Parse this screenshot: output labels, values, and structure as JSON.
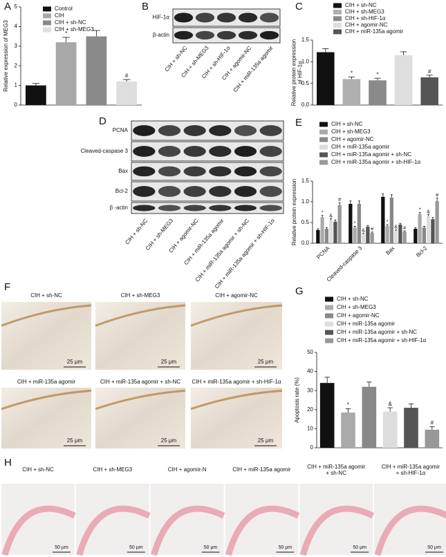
{
  "chart_data": [
    {
      "type": "bar",
      "label": "A",
      "ylabel": [
        "Relative expression of MEG3"
      ],
      "categories": [
        "Control",
        "CIH",
        "CIH + sh-NC",
        "CIH + sh-MEG3"
      ],
      "values": [
        1.0,
        3.2,
        3.5,
        1.2
      ],
      "errors": [
        0.1,
        0.25,
        0.3,
        0.1
      ],
      "colors": [
        "#111111",
        "#a8a8a8",
        "#8a8a8a",
        "#dedede"
      ],
      "annotations": [
        null,
        "*",
        null,
        "#"
      ],
      "ylim": [
        0,
        5
      ],
      "yticks": [
        0,
        1,
        2,
        3,
        4,
        5
      ]
    },
    {
      "type": "bar",
      "label": "C",
      "ylabel": [
        "Relative protein expression",
        "of HIF-1α"
      ],
      "categories": [
        "CIH + sh-NC",
        "CIH + sh-MEG3",
        "CIH + sh-HIF-1α",
        "CIH + agomir-NC",
        "CIH + miR-135a agomir"
      ],
      "values": [
        1.22,
        0.6,
        0.57,
        1.15,
        0.64
      ],
      "errors": [
        0.08,
        0.05,
        0.05,
        0.08,
        0.05
      ],
      "colors": [
        "#111111",
        "#b0b0b0",
        "#8a8a8a",
        "#dedede",
        "#555555"
      ],
      "annotations": [
        null,
        "*",
        "*",
        null,
        "#"
      ],
      "ylim": [
        0,
        1.5
      ],
      "yticks": [
        {
          "value": 0,
          "label": "0.0"
        },
        0.5,
        {
          "value": 1,
          "label": "1.0"
        },
        1.5
      ]
    },
    {
      "type": "grouped_bar",
      "label": "E",
      "ylabel": [
        "Relative protein expression"
      ],
      "categories": [
        "PCNA",
        "Cleaved-caspase 3",
        "Bax",
        "Bcl-2"
      ],
      "series": [
        {
          "name": "CIH + sh-NC",
          "color": "#111111",
          "values": [
            0.32,
            0.95,
            1.12,
            0.35
          ],
          "errors": [
            0.03,
            0.07,
            0.07,
            0.03
          ],
          "annotations": [
            null,
            null,
            null,
            null
          ]
        },
        {
          "name": "CIH + sh-MEG3",
          "color": "#aaaaaa",
          "values": [
            0.63,
            0.38,
            0.42,
            0.7
          ],
          "errors": [
            0.04,
            0.03,
            0.03,
            0.04
          ],
          "annotations": [
            "*",
            "*",
            "*",
            "*"
          ]
        },
        {
          "name": "CIH + agomir-NC",
          "color": "#888888",
          "values": [
            0.35,
            0.95,
            1.1,
            0.38
          ],
          "errors": [
            0.03,
            0.07,
            0.07,
            0.03
          ],
          "annotations": [
            null,
            null,
            null,
            null
          ]
        },
        {
          "name": "CIH + miR-135a agomir",
          "color": "#dddddd",
          "values": [
            0.55,
            0.22,
            0.3,
            0.65
          ],
          "errors": [
            0.04,
            0.02,
            0.02,
            0.04
          ],
          "annotations": [
            "&",
            "&",
            "&",
            "&"
          ]
        },
        {
          "name": "CIH + miR-135a agomir + sh-NC",
          "color": "#555555",
          "values": [
            0.52,
            0.4,
            0.45,
            0.58
          ],
          "errors": [
            0.04,
            0.03,
            0.03,
            0.04
          ],
          "annotations": [
            null,
            null,
            null,
            null
          ]
        },
        {
          "name": "CIH + miR-135a agomir + sh-HIF-1α",
          "color": "#999999",
          "values": [
            0.92,
            0.25,
            0.28,
            1.02
          ],
          "errors": [
            0.06,
            0.02,
            0.02,
            0.07
          ],
          "annotations": [
            "#",
            "#",
            "#",
            "#"
          ]
        }
      ],
      "ylim": [
        0,
        1.5
      ],
      "yticks": [
        {
          "value": 0,
          "label": "0.0"
        },
        0.5,
        {
          "value": 1,
          "label": "1.0"
        },
        1.5
      ]
    },
    {
      "type": "bar",
      "label": "G",
      "ylabel": [
        "Apoptosis rate (%)"
      ],
      "categories": [
        "CIH + sh-NC",
        "CIH + sh-MEG3",
        "CIH + agomir-NC",
        "CIH + miR-135a agomir",
        "CIH + miR-135a agomir + sh-NC",
        "CIH + miR-135a agomir + sh-HIF-1α"
      ],
      "values": [
        34,
        18.5,
        32,
        19,
        21,
        9.5
      ],
      "errors": [
        3,
        2,
        2.5,
        2,
        2,
        1.5
      ],
      "colors": [
        "#111111",
        "#aaaaaa",
        "#888888",
        "#dddddd",
        "#555555",
        "#999999"
      ],
      "annotations": [
        null,
        "*",
        null,
        "&",
        null,
        "#"
      ],
      "ylim": [
        0,
        50
      ],
      "yticks": [
        0,
        10,
        20,
        30,
        40,
        50
      ]
    }
  ],
  "blots": [
    {
      "label": "B",
      "rows": [
        "HIF-1α",
        "β-actin"
      ],
      "lanes": [
        "CIH + sh-NC",
        "CIH + sh-MEG3",
        "CIH + sh-HIF-1α",
        "CIH + agomir-NC",
        "CIH + miR-135a agomir"
      ]
    },
    {
      "label": "D",
      "rows": [
        "PCNA",
        "Cleaved-caspase 3",
        "Bax",
        "Bcl-2",
        "β -actin"
      ],
      "lanes": [
        "CIH + sh-NC",
        "CIH + sh-MEG3",
        "CIH + agomir-NC",
        "CIH + miR-135a agomir",
        "CIH + miR-135a agomir + sh-NC",
        "CIH + miR-135a agomir + sh-HIF-1α"
      ]
    }
  ],
  "micrographs": [
    {
      "label": "F",
      "scale": "25 μm",
      "captions": [
        [
          "CIH + sh-NC"
        ],
        [
          "CIH + sh-MEG3"
        ],
        [
          "CIH + agomir-NC"
        ],
        [
          "CIH + miR-135a agomir"
        ],
        [
          "CIH + miR-135a agomir + sh-NC"
        ],
        [
          "CIH + miR-135a agomir + sh-HIF-1α"
        ]
      ]
    },
    {
      "label": "H",
      "scale": "50 μm",
      "captions": [
        [
          "CIH + sh-NC"
        ],
        [
          "CIH + sh-MEG3"
        ],
        [
          "CIH + agomir-N"
        ],
        [
          "CIH + miR-135a agomir"
        ],
        [
          "CIH + miR-135a agomir",
          "+ sh-NC"
        ],
        [
          "CIH + miR-135a agomir",
          "+ sh-HIF-1α"
        ]
      ]
    }
  ]
}
